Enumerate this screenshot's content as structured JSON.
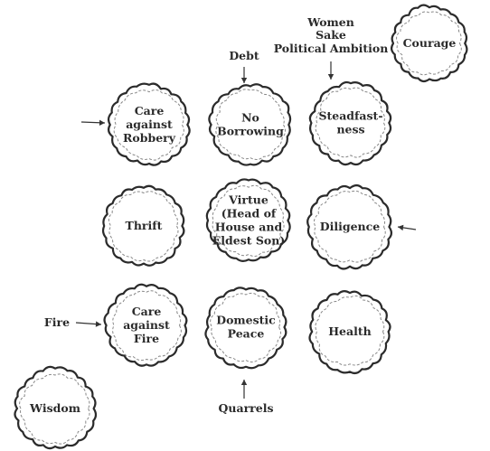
{
  "diagram": {
    "nodes": [
      {
        "id": "courage",
        "lines": [
          "Courage"
        ]
      },
      {
        "id": "care-against-robbery",
        "lines": [
          "Care",
          "against",
          "Robbery"
        ]
      },
      {
        "id": "no-borrowing",
        "lines": [
          "No",
          "Borrowing"
        ]
      },
      {
        "id": "steadfastness",
        "lines": [
          "Steadfast-",
          "ness"
        ]
      },
      {
        "id": "thrift",
        "lines": [
          "Thrift"
        ]
      },
      {
        "id": "virtue",
        "lines": [
          "Virtue",
          "(Head of",
          "House and",
          "Eldest Son)"
        ]
      },
      {
        "id": "diligence",
        "lines": [
          "Diligence"
        ]
      },
      {
        "id": "care-against-fire",
        "lines": [
          "Care",
          "against",
          "Fire"
        ]
      },
      {
        "id": "domestic-peace",
        "lines": [
          "Domestic",
          "Peace"
        ]
      },
      {
        "id": "health",
        "lines": [
          "Health"
        ]
      },
      {
        "id": "wisdom",
        "lines": [
          "Wisdom"
        ]
      }
    ],
    "annotations": [
      {
        "id": "women-sake-political-ambition",
        "lines": [
          "Women",
          "Sake",
          "Political Ambition"
        ],
        "target": "steadfastness"
      },
      {
        "id": "debt",
        "lines": [
          "Debt"
        ],
        "target": "no-borrowing"
      },
      {
        "id": "fire",
        "lines": [
          "Fire"
        ],
        "target": "care-against-fire"
      },
      {
        "id": "quarrels",
        "lines": [
          "Quarrels"
        ],
        "target": "domestic-peace"
      }
    ],
    "unlabeled_arrows": [
      {
        "id": "arrow-to-care-against-robbery",
        "target": "care-against-robbery"
      },
      {
        "id": "arrow-to-diligence",
        "target": "diligence"
      }
    ]
  }
}
